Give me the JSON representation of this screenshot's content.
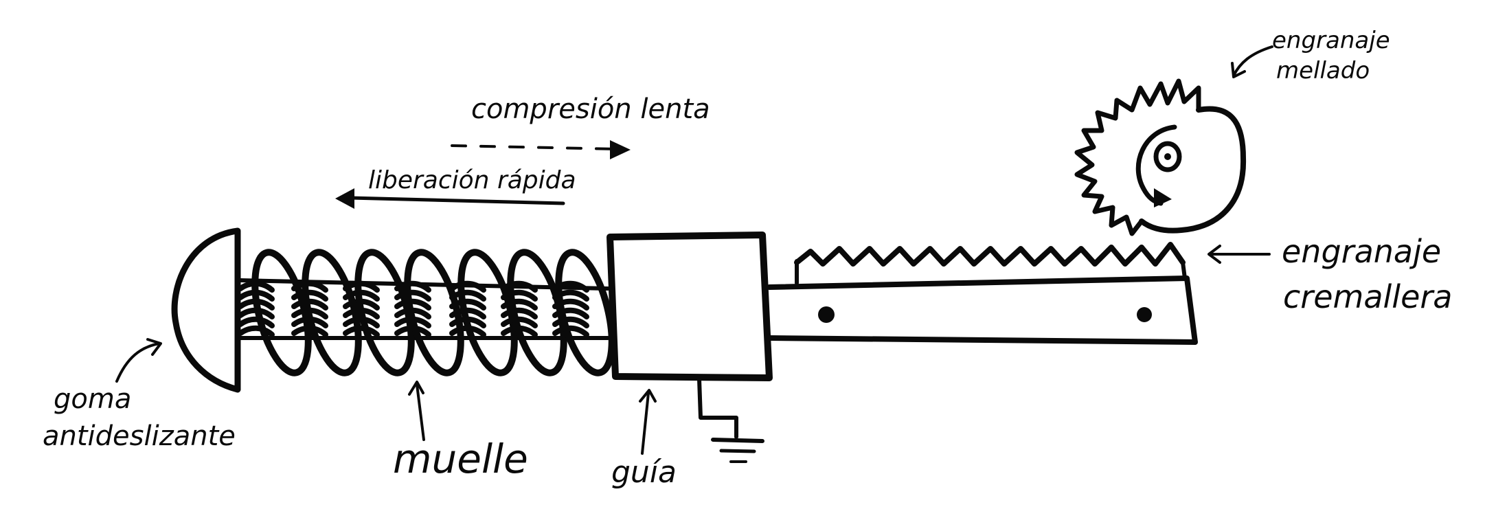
{
  "labels": {
    "compression": "compresión lenta",
    "release": "liberación rápida",
    "notched_gear_line1": "engranaje",
    "notched_gear_line2": "mellado",
    "rack_gear_line1": "engranaje",
    "rack_gear_line2": "cremallera",
    "rubber_line1": "goma",
    "rubber_line2": "antideslizante",
    "spring": "muelle",
    "guide": "guía"
  },
  "colors": {
    "ink": "#0a0a0a",
    "background": "#ffffff"
  }
}
